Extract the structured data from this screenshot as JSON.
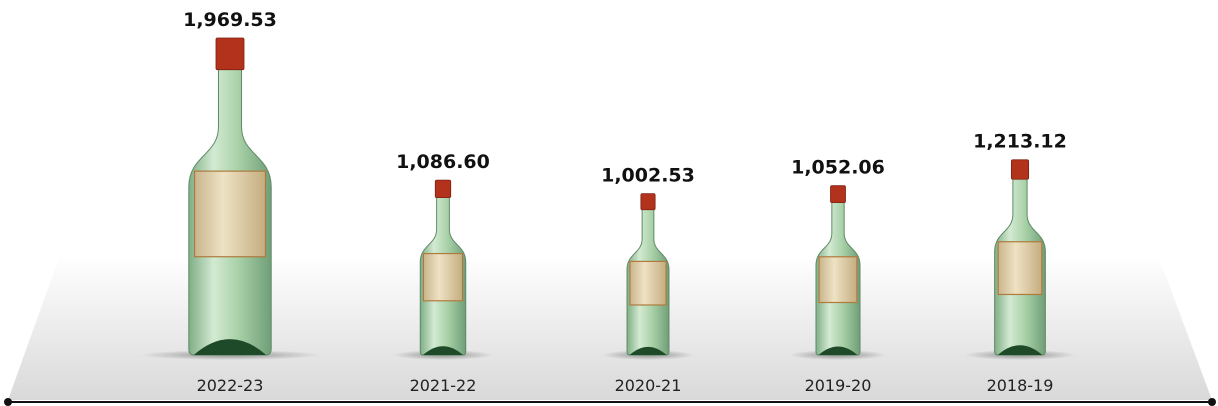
{
  "chart_data": {
    "type": "pictograph",
    "categories": [
      "2022-23",
      "2021-22",
      "2020-21",
      "2019-20",
      "2018-19"
    ],
    "values": [
      1969.53,
      1086.6,
      1002.53,
      1052.06,
      1213.12
    ],
    "value_labels": [
      "1,969.53",
      "1,086.60",
      "1,002.53",
      "1,052.06",
      "1,213.12"
    ],
    "color": "#a9d1a8"
  }
}
